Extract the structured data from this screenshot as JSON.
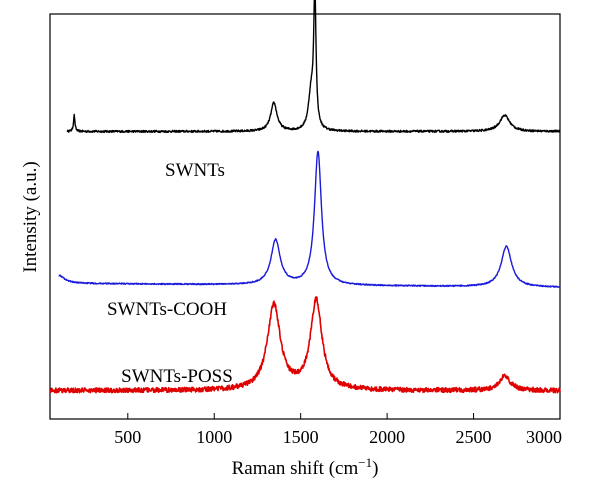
{
  "chart_data": {
    "type": "line",
    "title": "",
    "xlabel": "Raman shift (cm",
    "xlabel_superscript": "−1",
    "xlabel_suffix": ")",
    "ylabel": "Intensity (a.u.)",
    "xlim": [
      50,
      3000
    ],
    "xticks": [
      500,
      1000,
      1500,
      2000,
      2500,
      3000
    ],
    "grid": false,
    "series": [
      {
        "name": "SWNTs",
        "color": "#000000",
        "baseline": 0.71,
        "noise": 0.0025,
        "xrange": [
          150,
          3000
        ],
        "peaks": [
          {
            "x": 190,
            "h": 0.04,
            "w": 5
          },
          {
            "x": 1345,
            "h": 0.07,
            "w": 22
          },
          {
            "x": 1560,
            "h": 0.09,
            "w": 18
          },
          {
            "x": 1582,
            "h": 0.33,
            "w": 8
          },
          {
            "x": 2680,
            "h": 0.04,
            "w": 35
          }
        ]
      },
      {
        "name": "SWNTs-COOH",
        "color": "#1a1adb",
        "baseline": 0.335,
        "noise": 0.0015,
        "slope": -0.01,
        "xrange": [
          100,
          3000
        ],
        "peaks": [
          {
            "x": 100,
            "h": 0.02,
            "w": 40
          },
          {
            "x": 1355,
            "h": 0.11,
            "w": 32
          },
          {
            "x": 1600,
            "h": 0.33,
            "w": 24
          },
          {
            "x": 2690,
            "h": 0.1,
            "w": 36
          }
        ]
      },
      {
        "name": "SWNTs-POSS",
        "color": "#e00000",
        "baseline": 0.07,
        "noise": 0.006,
        "xrange": [
          50,
          3000
        ],
        "peaks": [
          {
            "x": 1345,
            "h": 0.21,
            "w": 45
          },
          {
            "x": 1590,
            "h": 0.22,
            "w": 40
          },
          {
            "x": 2680,
            "h": 0.035,
            "w": 40
          }
        ]
      }
    ]
  }
}
